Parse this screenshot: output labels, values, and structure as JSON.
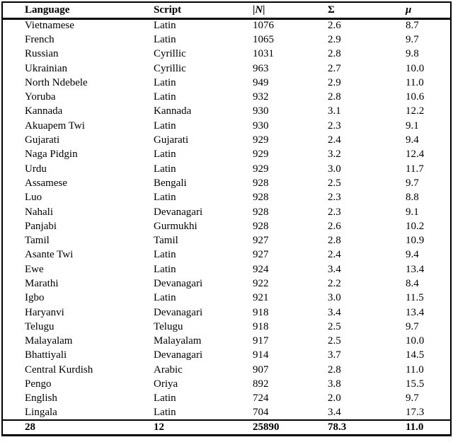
{
  "table": {
    "column_keys": [
      "language",
      "script",
      "n",
      "sigma",
      "mu"
    ],
    "header": {
      "language": "Language",
      "script": "Script",
      "n_open": "|",
      "n_letter": "N",
      "n_close": "|",
      "sigma": "Σ",
      "mu": "μ"
    },
    "rows": [
      [
        "Vietnamese",
        "Latin",
        "1076",
        "2.6",
        "8.7"
      ],
      [
        "French",
        "Latin",
        "1065",
        "2.9",
        "9.7"
      ],
      [
        "Russian",
        "Cyrillic",
        "1031",
        "2.8",
        "9.8"
      ],
      [
        "Ukrainian",
        "Cyrillic",
        "963",
        "2.7",
        "10.0"
      ],
      [
        "North Ndebele",
        "Latin",
        "949",
        "2.9",
        "11.0"
      ],
      [
        "Yoruba",
        "Latin",
        "932",
        "2.8",
        "10.6"
      ],
      [
        "Kannada",
        "Kannada",
        "930",
        "3.1",
        "12.2"
      ],
      [
        "Akuapem Twi",
        "Latin",
        "930",
        "2.3",
        "9.1"
      ],
      [
        "Gujarati",
        "Gujarati",
        "929",
        "2.4",
        "9.4"
      ],
      [
        "Naga Pidgin",
        "Latin",
        "929",
        "3.2",
        "12.4"
      ],
      [
        "Urdu",
        "Latin",
        "929",
        "3.0",
        "11.7"
      ],
      [
        "Assamese",
        "Bengali",
        "928",
        "2.5",
        "9.7"
      ],
      [
        "Luo",
        "Latin",
        "928",
        "2.3",
        "8.8"
      ],
      [
        "Nahali",
        "Devanagari",
        "928",
        "2.3",
        "9.1"
      ],
      [
        "Panjabi",
        "Gurmukhi",
        "928",
        "2.6",
        "10.2"
      ],
      [
        "Tamil",
        "Tamil",
        "927",
        "2.8",
        "10.9"
      ],
      [
        "Asante Twi",
        "Latin",
        "927",
        "2.4",
        "9.4"
      ],
      [
        "Ewe",
        "Latin",
        "924",
        "3.4",
        "13.4"
      ],
      [
        "Marathi",
        "Devanagari",
        "922",
        "2.2",
        "8.4"
      ],
      [
        "Igbo",
        "Latin",
        "921",
        "3.0",
        "11.5"
      ],
      [
        "Haryanvi",
        "Devanagari",
        "918",
        "3.4",
        "13.4"
      ],
      [
        "Telugu",
        "Telugu",
        "918",
        "2.5",
        "9.7"
      ],
      [
        "Malayalam",
        "Malayalam",
        "917",
        "2.5",
        "10.0"
      ],
      [
        "Bhattiyali",
        "Devanagari",
        "914",
        "3.7",
        "14.5"
      ],
      [
        "Central Kurdish",
        "Arabic",
        "907",
        "2.8",
        "11.0"
      ],
      [
        "Pengo",
        "Oriya",
        "892",
        "3.8",
        "15.5"
      ],
      [
        "English",
        "Latin",
        "724",
        "2.0",
        "9.7"
      ],
      [
        "Lingala",
        "Latin",
        "704",
        "3.4",
        "17.3"
      ]
    ],
    "totals": [
      "28",
      "12",
      "25890",
      "78.3",
      "11.0"
    ]
  },
  "colors": {
    "border": "#000000",
    "text": "#000000",
    "background": "#ffffff"
  }
}
